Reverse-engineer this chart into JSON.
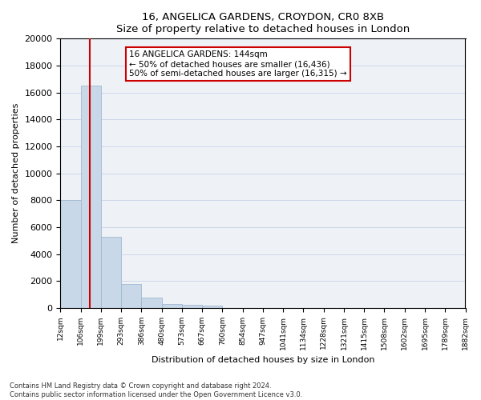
{
  "title": "16, ANGELICA GARDENS, CROYDON, CR0 8XB",
  "subtitle": "Size of property relative to detached houses in London",
  "xlabel": "Distribution of detached houses by size in London",
  "ylabel": "Number of detached properties",
  "bar_values": [
    8000,
    16500,
    5300,
    1800,
    750,
    300,
    200,
    150,
    0,
    0,
    0,
    0,
    0,
    0,
    0,
    0,
    0,
    0,
    0,
    0
  ],
  "tick_labels": [
    "12sqm",
    "106sqm",
    "199sqm",
    "293sqm",
    "386sqm",
    "480sqm",
    "573sqm",
    "667sqm",
    "760sqm",
    "854sqm",
    "947sqm",
    "1041sqm",
    "1134sqm",
    "1228sqm",
    "1321sqm",
    "1415sqm",
    "1508sqm",
    "1602sqm",
    "1695sqm",
    "1789sqm",
    "1882sqm"
  ],
  "bar_color": "#c8d8e8",
  "bar_edge_color": "#a0b8d0",
  "property_line_x": 1.44,
  "property_label": "16 ANGELICA GARDENS: 144sqm",
  "annotation_line1": "← 50% of detached houses are smaller (16,436)",
  "annotation_line2": "50% of semi-detached houses are larger (16,315) →",
  "annotation_box_color": "#ffffff",
  "annotation_box_edge": "#cc0000",
  "property_line_color": "#cc0000",
  "ylim": [
    0,
    20000
  ],
  "yticks": [
    0,
    2000,
    4000,
    6000,
    8000,
    10000,
    12000,
    14000,
    16000,
    18000,
    20000
  ],
  "footer_line1": "Contains HM Land Registry data © Crown copyright and database right 2024.",
  "footer_line2": "Contains public sector information licensed under the Open Government Licence v3.0.",
  "bg_color": "#eef2f7"
}
